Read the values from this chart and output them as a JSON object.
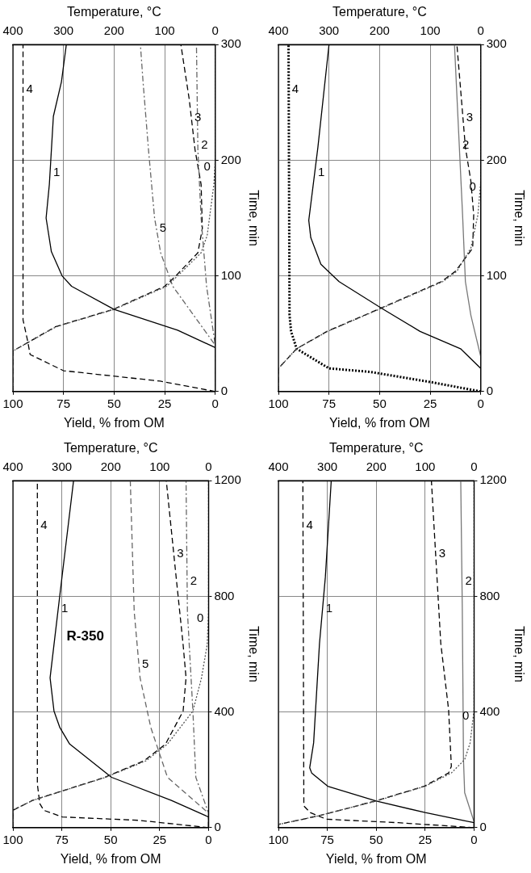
{
  "chart_data": [
    {
      "type": "line",
      "xlabel": "Yield, % from OM",
      "ylabel": "Time, min",
      "x2label": "Temperature, °C",
      "xlim": [
        100,
        0
      ],
      "xticks": [
        100,
        75,
        50,
        25,
        0
      ],
      "x2lim": [
        400,
        0
      ],
      "x2ticks": [
        400,
        300,
        200,
        100,
        0
      ],
      "ylim": [
        0,
        300
      ],
      "yticks": [
        0,
        100,
        200,
        300
      ],
      "grid": true,
      "legend": false,
      "marker": "none",
      "series": [
        {
          "name": "0",
          "color": "#555555",
          "line_style": "dotted",
          "values": [
            0,
            35,
            56,
            71,
            91,
            100,
            120,
            135,
            179,
            200,
            300
          ],
          "x": [
            100,
            100,
            78.6,
            50,
            24,
            18.6,
            7,
            4,
            0.7,
            0,
            0
          ]
        },
        {
          "name": "1",
          "color": "#000000",
          "line_style": "solid",
          "values": [
            0,
            38,
            53,
            71,
            91,
            100,
            121,
            150,
            179,
            238,
            268,
            300
          ],
          "x": [
            0,
            0,
            18.6,
            50,
            71,
            75.7,
            81,
            83.6,
            82,
            80,
            76,
            73.6
          ]
        },
        {
          "name": "2",
          "color": "#666666",
          "line_style": "dashdot",
          "values": [
            0,
            40,
            91,
            150,
            209,
            300
          ],
          "x": [
            0,
            0,
            4.3,
            7,
            8.6,
            9.3
          ]
        },
        {
          "name": "3",
          "color": "#000000",
          "line_style": "dashed",
          "values": [
            0,
            35,
            56,
            71,
            91,
            100,
            120,
            141,
            179,
            209,
            253,
            300
          ],
          "x": [
            100,
            100,
            79,
            50.5,
            25,
            19.5,
            8.6,
            6.4,
            7,
            10,
            12.9,
            17
          ]
        },
        {
          "name": "4",
          "color": "#000000",
          "line_style": "dashed",
          "axis": "x2",
          "values": [
            0,
            9,
            18,
            32,
            44,
            62,
            300
          ],
          "x": [
            0,
            109,
            300,
            366,
            371,
            380,
            380
          ]
        },
        {
          "name": "5",
          "color": "#666666",
          "line_style": "dashdot",
          "values": [
            0,
            40,
            91,
            120,
            150,
            209,
            268,
            300
          ],
          "x": [
            0,
            0,
            21,
            27,
            30,
            33,
            35.7,
            37
          ]
        }
      ]
    },
    {
      "type": "line",
      "xlabel": "Yield, % from OM",
      "ylabel": "Time, min",
      "x2label": "Temperature, °C",
      "xlim": [
        100,
        0
      ],
      "xticks": [
        100,
        75,
        50,
        25,
        0
      ],
      "x2lim": [
        400,
        0
      ],
      "x2ticks": [
        400,
        300,
        200,
        100,
        0
      ],
      "ylim": [
        0,
        300
      ],
      "yticks": [
        0,
        100,
        200,
        300
      ],
      "grid": true,
      "legend": false,
      "marker": "none",
      "series": [
        {
          "name": "0",
          "color": "#555555",
          "line_style": "dotted",
          "values": [
            0,
            20,
            37,
            52,
            72,
            95,
            104,
            124,
            153,
            182,
            300
          ],
          "x": [
            100,
            100,
            91,
            75.7,
            49,
            18.8,
            11.8,
            4.9,
            1.4,
            0,
            0
          ]
        },
        {
          "name": "1",
          "color": "#000000",
          "line_style": "solid",
          "values": [
            0,
            20,
            37,
            52,
            72,
            95,
            110,
            133,
            148,
            211,
            300
          ],
          "x": [
            0,
            0,
            10,
            30,
            49,
            70,
            79,
            84,
            85,
            80.5,
            75
          ]
        },
        {
          "name": "2",
          "color": "#777777",
          "line_style": "solid",
          "values": [
            0,
            30,
            66,
            95,
            153,
            300
          ],
          "x": [
            0,
            0,
            4.9,
            7.6,
            9,
            13
          ]
        },
        {
          "name": "3",
          "color": "#000000",
          "line_style": "dashed",
          "values": [
            0,
            20,
            37,
            52,
            72,
            95,
            104,
            124,
            153,
            182,
            211,
            300
          ],
          "x": [
            100,
            100,
            91,
            76,
            49.5,
            19.5,
            12.5,
            4,
            3.5,
            4.9,
            7.6,
            11.8
          ]
        },
        {
          "name": "4",
          "color": "#000000",
          "line_style": "dotted",
          "axis": "x2",
          "values": [
            0,
            8,
            17,
            20,
            37,
            52,
            66,
            300
          ],
          "x": [
            0,
            97,
            219,
            300,
            364,
            375,
            378,
            380
          ]
        }
      ]
    },
    {
      "type": "line",
      "xlabel": "Yield, % from OM",
      "ylabel": "Time, min",
      "x2label": "Temperature, °C",
      "xlim": [
        100,
        0
      ],
      "xticks": [
        100,
        75,
        50,
        25,
        0
      ],
      "x2lim": [
        400,
        0
      ],
      "x2ticks": [
        400,
        300,
        200,
        100,
        0
      ],
      "ylim": [
        0,
        1200
      ],
      "yticks": [
        0,
        400,
        800,
        1200
      ],
      "grid": true,
      "legend": false,
      "marker": "none",
      "annotations": [
        "R-350"
      ],
      "series": [
        {
          "name": "0",
          "color": "#555555",
          "line_style": "dotted",
          "values": [
            0,
            60,
            94,
            174,
            231,
            289,
            403,
            518,
            633,
            747,
            1200
          ],
          "x": [
            100,
            100,
            90,
            52.5,
            32,
            21,
            8,
            3.6,
            0.7,
            0,
            0
          ]
        },
        {
          "name": "1",
          "color": "#000000",
          "line_style": "solid",
          "values": [
            0,
            37,
            94,
            174,
            289,
            346,
            403,
            518,
            633,
            862,
            1200
          ],
          "x": [
            0,
            0,
            19,
            49.6,
            71,
            76,
            79,
            81,
            79,
            75,
            69
          ]
        },
        {
          "name": "2",
          "color": "#666666",
          "line_style": "dashdot",
          "values": [
            0,
            50,
            174,
            403,
            747,
            1200
          ],
          "x": [
            0,
            0,
            6.5,
            8,
            10.8,
            11.5
          ]
        },
        {
          "name": "3",
          "color": "#000000",
          "line_style": "dashed",
          "values": [
            0,
            60,
            94,
            174,
            231,
            289,
            403,
            518,
            633,
            862,
            1200
          ],
          "x": [
            100,
            100,
            90,
            53,
            33,
            22,
            13,
            11.5,
            13,
            16.5,
            21.6
          ]
        },
        {
          "name": "4",
          "color": "#000000",
          "line_style": "dashed",
          "axis": "x2",
          "values": [
            0,
            25,
            37,
            60,
            83,
            150,
            1200
          ],
          "x": [
            0,
            141,
            299,
            337,
            345,
            350,
            350
          ]
        },
        {
          "name": "5",
          "color": "#666666",
          "line_style": "dashed",
          "values": [
            0,
            50,
            174,
            346,
            518,
            747,
            1200
          ],
          "x": [
            0,
            0,
            21,
            29.5,
            35,
            38,
            40
          ]
        }
      ]
    },
    {
      "type": "line",
      "xlabel": "Yield, % from OM",
      "ylabel": "Time, min",
      "x2label": "Temperature, °C",
      "xlim": [
        100,
        0
      ],
      "xticks": [
        100,
        75,
        50,
        25,
        0
      ],
      "x2lim": [
        400,
        0
      ],
      "x2ticks": [
        400,
        300,
        200,
        100,
        0
      ],
      "ylim": [
        0,
        1200
      ],
      "yticks": [
        0,
        400,
        800,
        1200
      ],
      "grid": true,
      "legend": false,
      "marker": "none",
      "series": [
        {
          "name": "0",
          "color": "#555555",
          "line_style": "dotted",
          "values": [
            0,
            11,
            40,
            92,
            143,
            189,
            235,
            293,
            407,
            1200
          ],
          "x": [
            100,
            100,
            80,
            50,
            25,
            11.6,
            4.8,
            2,
            0,
            0
          ]
        },
        {
          "name": "1",
          "color": "#000000",
          "line_style": "solid",
          "values": [
            0,
            17,
            52,
            92,
            143,
            189,
            207,
            293,
            637,
            867,
            1200
          ],
          "x": [
            0,
            0,
            25,
            50,
            74.8,
            83,
            84,
            82,
            79,
            76,
            73
          ]
        },
        {
          "name": "2",
          "color": "#777777",
          "line_style": "solid",
          "values": [
            0,
            20,
            121,
            235,
            752,
            1200
          ],
          "x": [
            0,
            0,
            4.8,
            5.4,
            6,
            6.8
          ]
        },
        {
          "name": "3",
          "color": "#000000",
          "line_style": "dashed",
          "values": [
            0,
            11,
            40,
            92,
            143,
            189,
            212,
            407,
            637,
            1200
          ],
          "x": [
            100,
            100,
            80,
            50.5,
            25.5,
            13,
            11.6,
            13,
            17,
            21.8
          ]
        },
        {
          "name": "4",
          "color": "#000000",
          "line_style": "dashed",
          "axis": "x2",
          "values": [
            0,
            17,
            29,
            52,
            75,
            1200
          ],
          "x": [
            0,
            155,
            302,
            335,
            348,
            350
          ]
        }
      ]
    }
  ]
}
